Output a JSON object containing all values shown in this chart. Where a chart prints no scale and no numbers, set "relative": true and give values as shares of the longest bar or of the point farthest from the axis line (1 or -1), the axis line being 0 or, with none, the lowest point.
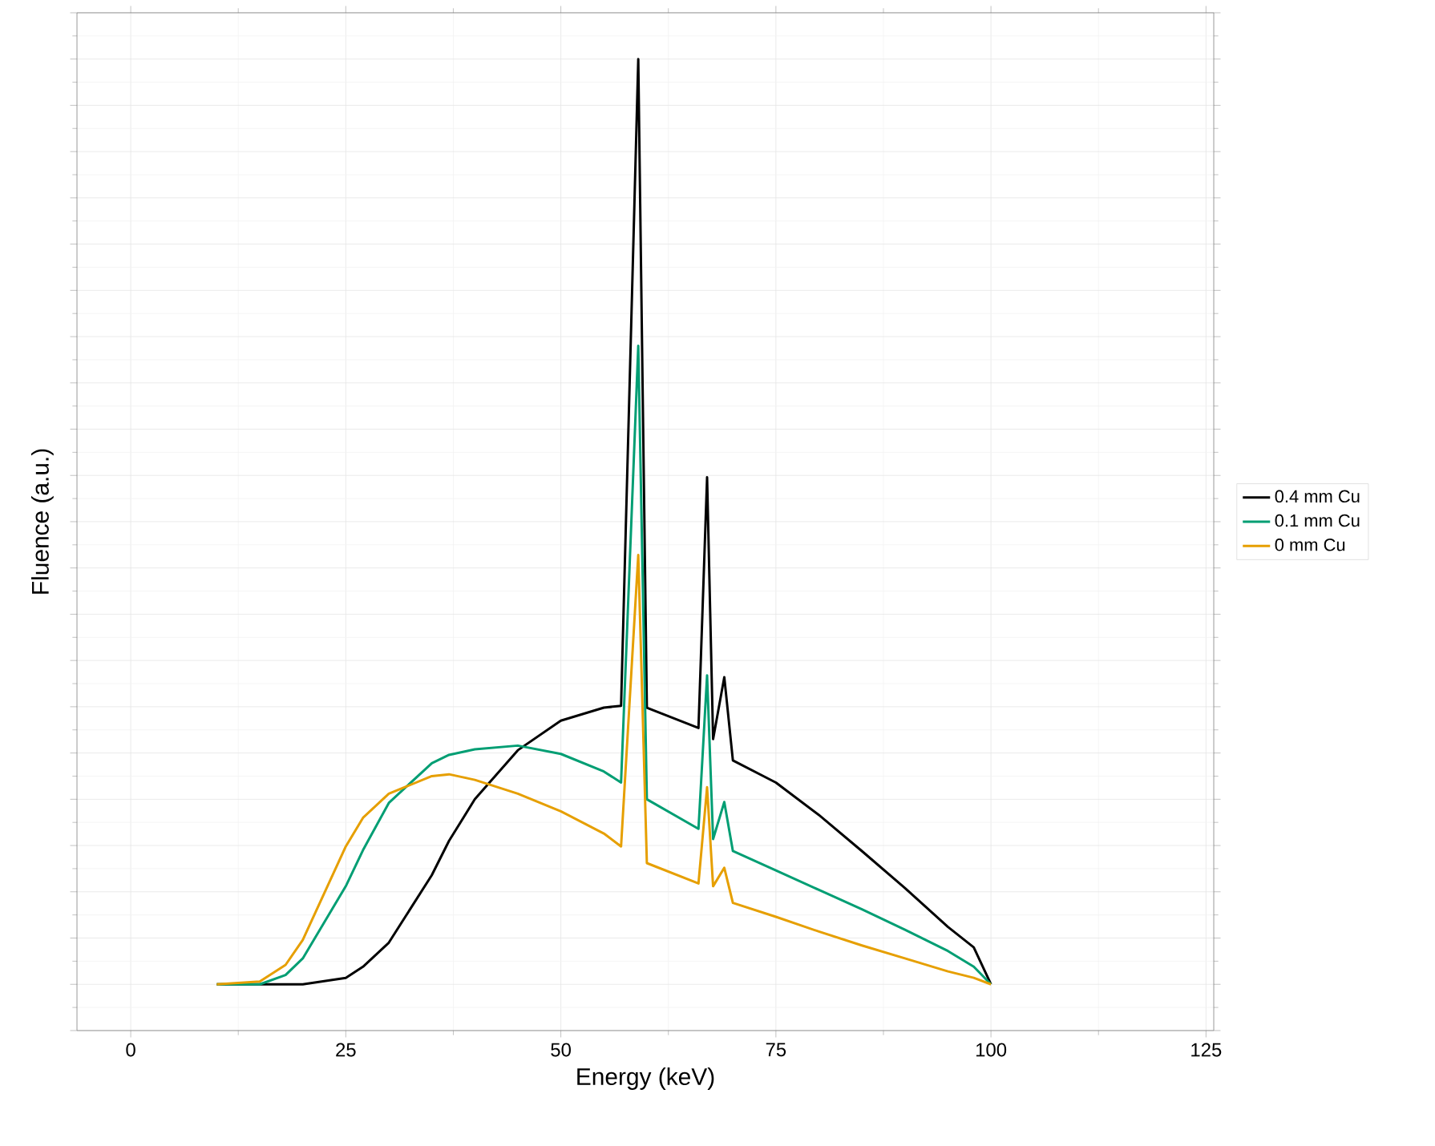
{
  "chart_data": {
    "type": "line",
    "xlabel": "Energy (keV)",
    "ylabel": "Fluence (a.u.)",
    "relative": true,
    "xlim": [
      -6.25,
      125.9
    ],
    "xticks": [
      0,
      25,
      50,
      75,
      100,
      125
    ],
    "grid": true,
    "legend": "right",
    "x": [
      10,
      15,
      18,
      20,
      25,
      27,
      30,
      35,
      37,
      40,
      45,
      50,
      55,
      57,
      59,
      60,
      66,
      67,
      67.7,
      69,
      70,
      75,
      80,
      85,
      90,
      95,
      98,
      100
    ],
    "series": [
      {
        "name": "0.4 mm Cu",
        "color": "#000000",
        "values": [
          0,
          0,
          0,
          0,
          0.007,
          0.019,
          0.045,
          0.118,
          0.155,
          0.2,
          0.253,
          0.285,
          0.299,
          0.301,
          1.0,
          0.299,
          0.277,
          0.548,
          0.265,
          0.332,
          0.242,
          0.218,
          0.183,
          0.144,
          0.104,
          0.062,
          0.04,
          0
        ]
      },
      {
        "name": "0.1 mm Cu",
        "color": "#009e73",
        "values": [
          0,
          0,
          0.01,
          0.028,
          0.106,
          0.145,
          0.196,
          0.239,
          0.248,
          0.254,
          0.258,
          0.249,
          0.23,
          0.218,
          0.69,
          0.2,
          0.168,
          0.334,
          0.157,
          0.197,
          0.144,
          0.123,
          0.102,
          0.081,
          0.059,
          0.036,
          0.019,
          0
        ]
      },
      {
        "name": "0 mm Cu",
        "color": "#e69f00",
        "values": [
          0,
          0.003,
          0.021,
          0.048,
          0.149,
          0.18,
          0.206,
          0.225,
          0.227,
          0.221,
          0.206,
          0.187,
          0.163,
          0.149,
          0.464,
          0.131,
          0.109,
          0.213,
          0.106,
          0.126,
          0.088,
          0.073,
          0.057,
          0.042,
          0.028,
          0.014,
          0.007,
          0
        ]
      }
    ]
  }
}
